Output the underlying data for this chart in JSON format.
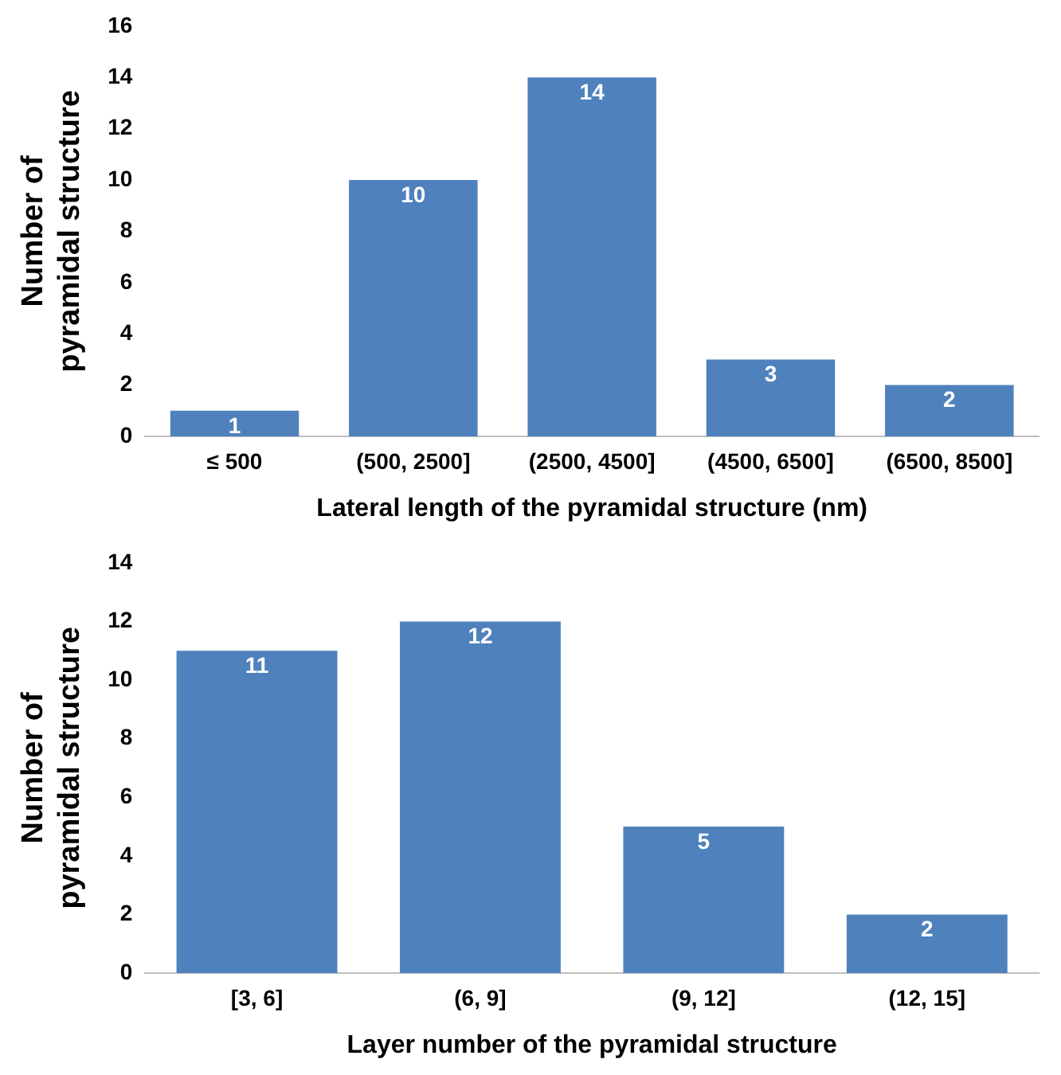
{
  "chart_data": [
    {
      "type": "bar",
      "xlabel": "Lateral length of the pyramidal structure (nm)",
      "ylabel": "Number of\npyramidal structure",
      "categories": [
        "≤ 500",
        "(500, 2500]",
        "(2500, 4500]",
        "(4500, 6500]",
        "(6500, 8500]"
      ],
      "values": [
        1,
        10,
        14,
        3,
        2
      ],
      "color": "#4f81bd",
      "ylim": [
        0,
        16
      ],
      "yticks": [
        0,
        2,
        4,
        6,
        8,
        10,
        12,
        14,
        16
      ],
      "grid": false,
      "legend": false,
      "data_labels": true
    },
    {
      "type": "bar",
      "xlabel": "Layer number of the pyramidal structure",
      "ylabel": "Number of\npyramidal structure",
      "categories": [
        "[3, 6]",
        "(6, 9]",
        "(9, 12]",
        "(12, 15]"
      ],
      "values": [
        11,
        12,
        5,
        2
      ],
      "color": "#4f81bd",
      "ylim": [
        0,
        14
      ],
      "yticks": [
        0,
        2,
        4,
        6,
        8,
        10,
        12,
        14
      ],
      "grid": false,
      "legend": false,
      "data_labels": true
    }
  ]
}
